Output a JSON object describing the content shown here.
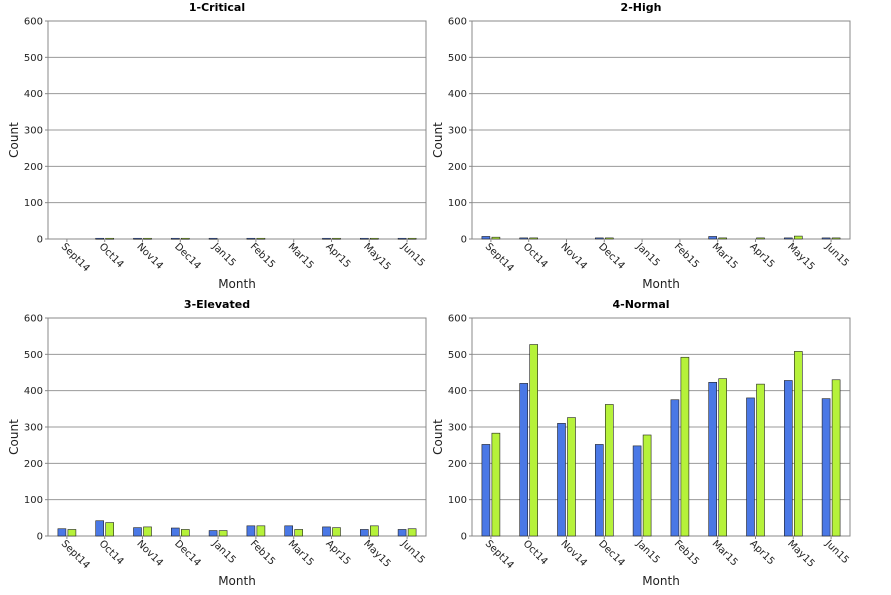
{
  "colors": {
    "series1": "#4a78e6",
    "series2": "#b6f23a",
    "grid": "#999999",
    "frame": "#888888"
  },
  "chart_data": [
    {
      "type": "bar",
      "title": "1-Critical",
      "xlabel": "Month",
      "ylabel": "Count",
      "ylim": [
        0,
        600
      ],
      "yticks": [
        0,
        100,
        200,
        300,
        400,
        500,
        600
      ],
      "grid": true,
      "categories": [
        "Sept14",
        "Oct14",
        "Nov14",
        "Dec14",
        "Jan15",
        "Feb15",
        "Mar15",
        "Apr15",
        "May15",
        "Jun15"
      ],
      "series": [
        {
          "values": [
            0,
            2,
            2,
            2,
            2,
            2,
            0,
            2,
            2,
            2
          ]
        },
        {
          "values": [
            0,
            2,
            2,
            2,
            0,
            2,
            0,
            2,
            2,
            2
          ]
        }
      ]
    },
    {
      "type": "bar",
      "title": "2-High",
      "xlabel": "Month",
      "ylabel": "Count",
      "ylim": [
        0,
        600
      ],
      "yticks": [
        0,
        100,
        200,
        300,
        400,
        500,
        600
      ],
      "grid": true,
      "categories": [
        "Sept14",
        "Oct14",
        "Nov14",
        "Dec14",
        "Jan15",
        "Feb15",
        "Mar15",
        "Apr15",
        "May15",
        "Jun15"
      ],
      "series": [
        {
          "values": [
            7,
            3,
            0,
            3,
            0,
            0,
            7,
            0,
            3,
            3
          ]
        },
        {
          "values": [
            5,
            3,
            0,
            3,
            0,
            0,
            3,
            3,
            8,
            3
          ]
        }
      ]
    },
    {
      "type": "bar",
      "title": "3-Elevated",
      "xlabel": "Month",
      "ylabel": "Count",
      "ylim": [
        0,
        600
      ],
      "yticks": [
        0,
        100,
        200,
        300,
        400,
        500,
        600
      ],
      "grid": true,
      "categories": [
        "Sept14",
        "Oct14",
        "Nov14",
        "Dec14",
        "Jan15",
        "Feb15",
        "Mar15",
        "Apr15",
        "May15",
        "Jun15"
      ],
      "series": [
        {
          "values": [
            20,
            42,
            23,
            22,
            15,
            28,
            28,
            25,
            18,
            18
          ]
        },
        {
          "values": [
            18,
            37,
            25,
            18,
            15,
            28,
            18,
            23,
            28,
            20
          ]
        }
      ]
    },
    {
      "type": "bar",
      "title": "4-Normal",
      "xlabel": "Month",
      "ylabel": "Count",
      "ylim": [
        0,
        600
      ],
      "yticks": [
        0,
        100,
        200,
        300,
        400,
        500,
        600
      ],
      "grid": true,
      "categories": [
        "Sept14",
        "Oct14",
        "Nov14",
        "Dec14",
        "Jan15",
        "Feb15",
        "Mar15",
        "Apr15",
        "May15",
        "Jun15"
      ],
      "series": [
        {
          "values": [
            252,
            420,
            310,
            252,
            248,
            375,
            423,
            380,
            428,
            378
          ]
        },
        {
          "values": [
            283,
            527,
            326,
            362,
            278,
            492,
            433,
            418,
            508,
            430
          ]
        }
      ]
    }
  ]
}
